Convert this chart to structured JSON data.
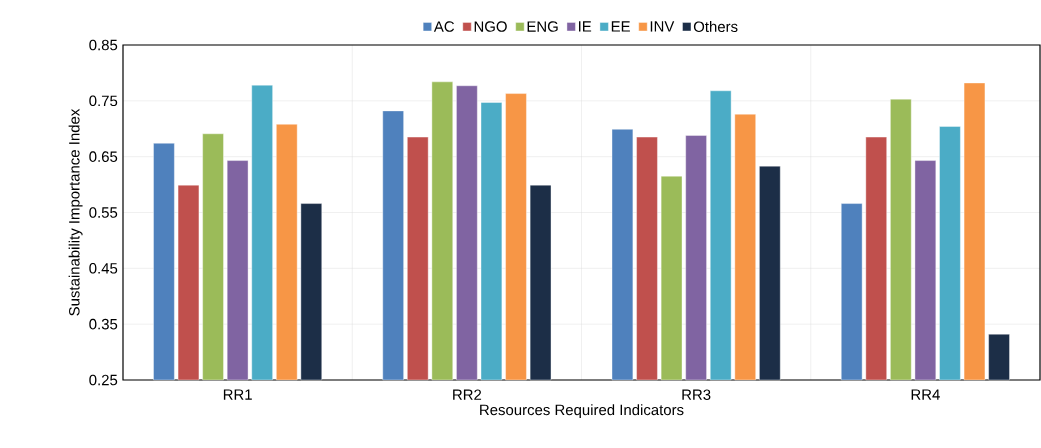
{
  "chart_data": {
    "type": "bar",
    "xlabel": "Resources Required Indicators",
    "ylabel": "Sustainability Importance Index",
    "categories": [
      "RR1",
      "RR2",
      "RR3",
      "RR4"
    ],
    "series": [
      {
        "name": "AC",
        "color": "#4f81bd",
        "values": [
          0.674,
          0.732,
          0.699,
          0.566
        ]
      },
      {
        "name": "NGO",
        "color": "#c0504d",
        "values": [
          0.599,
          0.685,
          0.685,
          0.685
        ]
      },
      {
        "name": "ENG",
        "color": "#9bbb59",
        "values": [
          0.691,
          0.784,
          0.615,
          0.753
        ]
      },
      {
        "name": "IE",
        "color": "#8064a2",
        "values": [
          0.643,
          0.777,
          0.688,
          0.643
        ]
      },
      {
        "name": "EE",
        "color": "#4bacc6",
        "values": [
          0.778,
          0.747,
          0.768,
          0.704
        ]
      },
      {
        "name": "INV",
        "color": "#f79646",
        "values": [
          0.708,
          0.763,
          0.726,
          0.782
        ]
      },
      {
        "name": "Others",
        "color": "#1c2e47",
        "values": [
          0.566,
          0.599,
          0.633,
          0.332
        ]
      }
    ],
    "ylim": [
      0.25,
      0.85
    ],
    "yticks": [
      0.25,
      0.35,
      0.45,
      0.55,
      0.65,
      0.75,
      0.85
    ],
    "grid": true,
    "legend": "top"
  }
}
